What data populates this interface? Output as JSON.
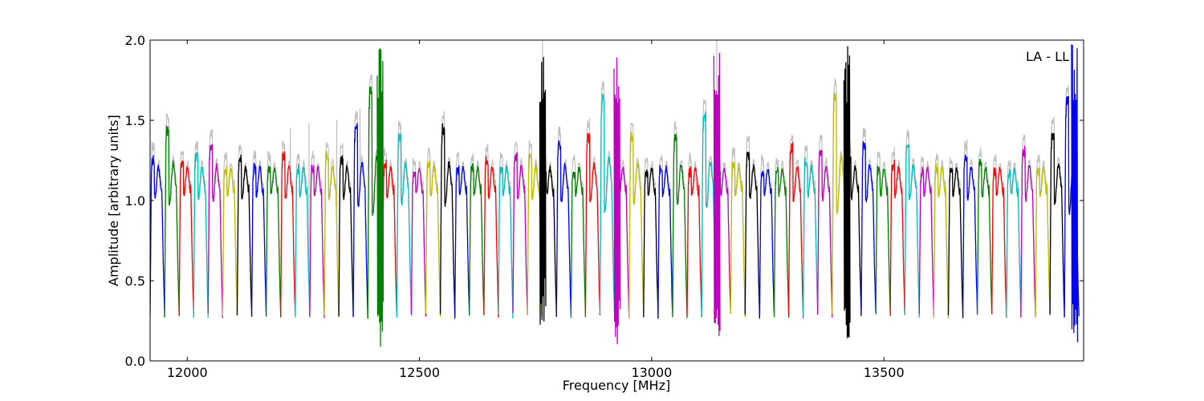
{
  "chart_data": {
    "type": "line",
    "title": "",
    "xlabel": "Frequency [MHz]",
    "ylabel": "Amplitude [arbitrary units]",
    "xlim": [
      11920,
      13930
    ],
    "ylim": [
      0.0,
      2.0
    ],
    "xticks": [
      12000,
      12500,
      13000,
      13500
    ],
    "xtick_labels": [
      "12000",
      "12500",
      "13000",
      "13500"
    ],
    "yticks": [
      0.0,
      0.5,
      1.0,
      1.5,
      2.0
    ],
    "ytick_labels": [
      "0.0",
      "0.5",
      "1.0",
      "1.5",
      "2.0"
    ],
    "annotation": "LA - LL",
    "grid": false,
    "background_series_color": "#c0c0c0",
    "color_cycle": [
      "#0000ff",
      "#008000",
      "#ff0000",
      "#00bfbf",
      "#bf00bf",
      "#bfbf00",
      "#000000"
    ],
    "channel_width_mhz": 31.25,
    "channels": [
      {
        "color": "#0000ff",
        "peak": 1.28
      },
      {
        "color": "#008000",
        "peak": 1.46
      },
      {
        "color": "#ff0000",
        "peak": 1.24
      },
      {
        "color": "#00bfbf",
        "peak": 1.3
      },
      {
        "color": "#bf00bf",
        "peak": 1.36
      },
      {
        "color": "#bfbf00",
        "peak": 1.22
      },
      {
        "color": "#000000",
        "peak": 1.28
      },
      {
        "color": "#0000ff",
        "peak": 1.22
      },
      {
        "color": "#008000",
        "peak": 1.22
      },
      {
        "color": "#ff0000",
        "peak": 1.3
      },
      {
        "color": "#00bfbf",
        "peak": 1.22
      },
      {
        "color": "#bf00bf",
        "peak": 1.22
      },
      {
        "color": "#bfbf00",
        "peak": 1.3
      },
      {
        "color": "#000000",
        "peak": 1.28
      },
      {
        "color": "#0000ff",
        "peak": 1.48
      },
      {
        "color": "#008000",
        "peak": 1.7
      },
      {
        "color": "#ff0000",
        "peak": 1.24
      },
      {
        "color": "#00bfbf",
        "peak": 1.42
      },
      {
        "color": "#bf00bf",
        "peak": 1.18
      },
      {
        "color": "#bfbf00",
        "peak": 1.25
      },
      {
        "color": "#000000",
        "peak": 1.47
      },
      {
        "color": "#0000ff",
        "peak": 1.22
      },
      {
        "color": "#008000",
        "peak": 1.22
      },
      {
        "color": "#ff0000",
        "peak": 1.26
      },
      {
        "color": "#00bfbf",
        "peak": 1.22
      },
      {
        "color": "#bf00bf",
        "peak": 1.3
      },
      {
        "color": "#bfbf00",
        "peak": 1.3
      },
      {
        "color": "#000000",
        "peak": 1.18
      },
      {
        "color": "#0000ff",
        "peak": 1.37
      },
      {
        "color": "#008000",
        "peak": 1.2
      },
      {
        "color": "#ff0000",
        "peak": 1.42
      },
      {
        "color": "#00bfbf",
        "peak": 1.66
      },
      {
        "color": "#bf00bf",
        "peak": 1.25
      },
      {
        "color": "#bfbf00",
        "peak": 1.42
      },
      {
        "color": "#000000",
        "peak": 1.2
      },
      {
        "color": "#0000ff",
        "peak": 1.22
      },
      {
        "color": "#008000",
        "peak": 1.41
      },
      {
        "color": "#ff0000",
        "peak": 1.2
      },
      {
        "color": "#00bfbf",
        "peak": 1.55
      },
      {
        "color": "#bf00bf",
        "peak": 1.18
      },
      {
        "color": "#bfbf00",
        "peak": 1.24
      },
      {
        "color": "#000000",
        "peak": 1.31
      },
      {
        "color": "#0000ff",
        "peak": 1.2
      },
      {
        "color": "#008000",
        "peak": 1.2
      },
      {
        "color": "#ff0000",
        "peak": 1.35
      },
      {
        "color": "#00bfbf",
        "peak": 1.26
      },
      {
        "color": "#bf00bf",
        "peak": 1.33
      },
      {
        "color": "#bfbf00",
        "peak": 1.68
      },
      {
        "color": "#000000",
        "peak": 1.28
      },
      {
        "color": "#0000ff",
        "peak": 1.38
      },
      {
        "color": "#008000",
        "peak": 1.22
      },
      {
        "color": "#ff0000",
        "peak": 1.24
      },
      {
        "color": "#00bfbf",
        "peak": 1.36
      },
      {
        "color": "#bf00bf",
        "peak": 1.2
      },
      {
        "color": "#bfbf00",
        "peak": 1.22
      },
      {
        "color": "#000000",
        "peak": 1.21
      },
      {
        "color": "#0000ff",
        "peak": 1.29
      },
      {
        "color": "#008000",
        "peak": 1.25
      },
      {
        "color": "#ff0000",
        "peak": 1.2
      },
      {
        "color": "#00bfbf",
        "peak": 1.18
      },
      {
        "color": "#bf00bf",
        "peak": 1.33
      },
      {
        "color": "#bfbf00",
        "peak": 1.21
      },
      {
        "color": "#000000",
        "peak": 1.44
      },
      {
        "color": "#0000ff",
        "peak": 1.65
      }
    ],
    "interference": [
      {
        "x": 12415,
        "min": 0.08,
        "max": 2.0
      },
      {
        "x": 12765,
        "min": 0.22,
        "max": 2.0
      },
      {
        "x": 12925,
        "min": 0.09,
        "max": 2.0
      },
      {
        "x": 13140,
        "min": 0.15,
        "max": 2.0
      },
      {
        "x": 13420,
        "min": 0.08,
        "max": 2.0
      },
      {
        "x": 13910,
        "min": 0.07,
        "max": 2.0
      }
    ]
  }
}
